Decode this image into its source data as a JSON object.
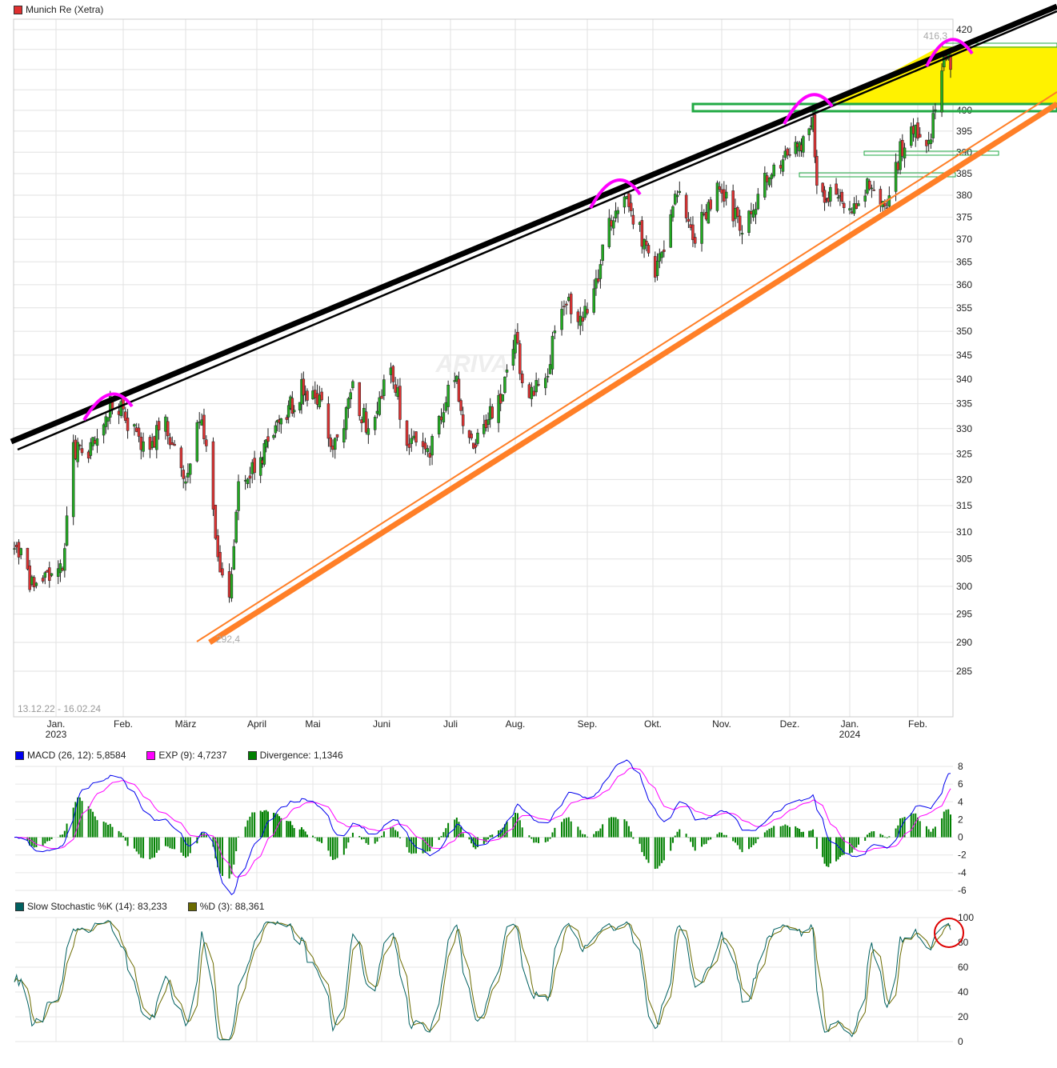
{
  "title": "Munich Re (Xetra)",
  "colors": {
    "title_marker": "#e03030",
    "up": "#22aa22",
    "down": "#dd3333",
    "macd": "#0000ee",
    "signal": "#ff00ff",
    "divergence": "#008000",
    "stoch_k": "#006060",
    "stoch_d": "#6b6b00",
    "channel_upper": "#000000",
    "channel_lower": "#ff7f27",
    "highlight": "#fff200",
    "box": "#22aa44",
    "arc": "#ff00ff",
    "circle": "#dd0000"
  },
  "watermark": "ARIVA",
  "date_range": "13.12.22 - 16.02.24",
  "annotations": {
    "high": "416,3",
    "low": "292,4"
  },
  "chart_data": [
    {
      "type": "candlestick",
      "scale": "log",
      "ylim": [
        285,
        420
      ],
      "yticks": [
        420,
        415,
        410,
        405,
        400,
        395,
        390,
        385,
        380,
        375,
        370,
        365,
        360,
        355,
        350,
        345,
        340,
        335,
        330,
        325,
        320,
        315,
        310,
        305,
        300,
        295,
        290,
        285
      ],
      "xticks": [
        {
          "label": "Jan.",
          "sub": "2023"
        },
        {
          "label": "Feb."
        },
        {
          "label": "März"
        },
        {
          "label": "April"
        },
        {
          "label": "Mai"
        },
        {
          "label": "Juni"
        },
        {
          "label": "Juli"
        },
        {
          "label": "Aug."
        },
        {
          "label": "Sep."
        },
        {
          "label": "Okt."
        },
        {
          "label": "Nov."
        },
        {
          "label": "Dez."
        },
        {
          "label": "Jan.",
          "sub": "2024"
        },
        {
          "label": "Feb."
        }
      ],
      "closes": [
        [
          "2022-12-13",
          308
        ],
        [
          "2022-12-22",
          299
        ],
        [
          "2023-01-04",
          305
        ],
        [
          "2023-01-09",
          325
        ],
        [
          "2023-01-18",
          326
        ],
        [
          "2023-01-26",
          335
        ],
        [
          "2023-02-01",
          333
        ],
        [
          "2023-02-10",
          326
        ],
        [
          "2023-02-20",
          331
        ],
        [
          "2023-03-01",
          318
        ],
        [
          "2023-03-07",
          332
        ],
        [
          "2023-03-10",
          328
        ],
        [
          "2023-03-15",
          305
        ],
        [
          "2023-03-20",
          296
        ],
        [
          "2023-03-24",
          318
        ],
        [
          "2023-03-31",
          322
        ],
        [
          "2023-04-14",
          331
        ],
        [
          "2023-04-25",
          338
        ],
        [
          "2023-05-05",
          337
        ],
        [
          "2023-05-10",
          325
        ],
        [
          "2023-05-19",
          338
        ],
        [
          "2023-05-26",
          330
        ],
        [
          "2023-06-05",
          342
        ],
        [
          "2023-06-12",
          328
        ],
        [
          "2023-06-22",
          325
        ],
        [
          "2023-07-03",
          342
        ],
        [
          "2023-07-07",
          330
        ],
        [
          "2023-07-14",
          327
        ],
        [
          "2023-07-25",
          337
        ],
        [
          "2023-08-01",
          347
        ],
        [
          "2023-08-07",
          336
        ],
        [
          "2023-08-15",
          343
        ],
        [
          "2023-08-22",
          357
        ],
        [
          "2023-08-30",
          352
        ],
        [
          "2023-09-06",
          362
        ],
        [
          "2023-09-12",
          375
        ],
        [
          "2023-09-20",
          378
        ],
        [
          "2023-09-27",
          369
        ],
        [
          "2023-10-03",
          363
        ],
        [
          "2023-10-12",
          380
        ],
        [
          "2023-10-20",
          370
        ],
        [
          "2023-10-31",
          383
        ],
        [
          "2023-11-10",
          371
        ],
        [
          "2023-11-20",
          383
        ],
        [
          "2023-11-30",
          390
        ],
        [
          "2023-12-08",
          393
        ],
        [
          "2023-12-13",
          398
        ],
        [
          "2023-12-15",
          380
        ],
        [
          "2023-12-22",
          381
        ],
        [
          "2024-01-03",
          377
        ],
        [
          "2024-01-10",
          382
        ],
        [
          "2024-01-17",
          376
        ],
        [
          "2024-01-24",
          390
        ],
        [
          "2024-01-31",
          397
        ],
        [
          "2024-02-05",
          390
        ],
        [
          "2024-02-09",
          400
        ],
        [
          "2024-02-14",
          413
        ],
        [
          "2024-02-16",
          410
        ]
      ]
    },
    {
      "type": "line",
      "name": "MACD",
      "ylim": [
        -6,
        8
      ],
      "yticks": [
        8,
        6,
        4,
        2,
        0,
        -2,
        -4,
        -6
      ],
      "legend": [
        {
          "label": "MACD (26, 12): 5,8584"
        },
        {
          "label": "EXP (9): 4,7237"
        },
        {
          "label": "Divergence: 1,1346"
        }
      ]
    },
    {
      "type": "line",
      "name": "Slow Stochastic",
      "ylim": [
        0,
        100
      ],
      "yticks": [
        100,
        80,
        60,
        40,
        20,
        0
      ],
      "legend": [
        {
          "label": "Slow Stochastic %K (14): 83,233"
        },
        {
          "label": "%D (3): 88,361"
        }
      ]
    }
  ]
}
